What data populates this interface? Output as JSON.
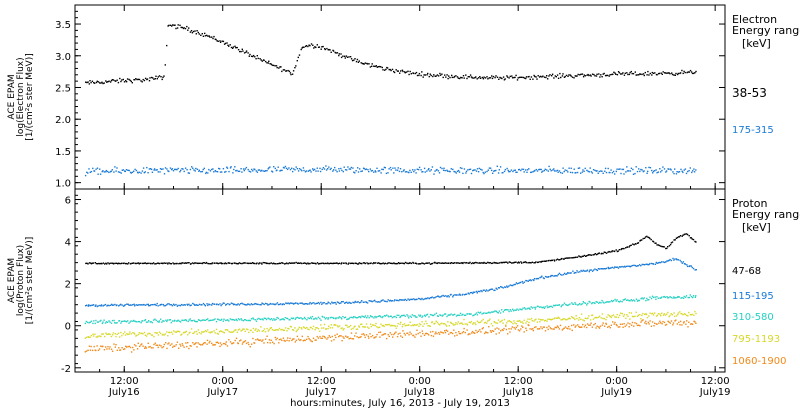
{
  "chart_data": [
    {
      "type": "scatter",
      "panel": "electron",
      "ylabel_lines": [
        "ACE EPAM",
        "log(Electron Flux)",
        "[1/(cm²s ster MeV)]"
      ],
      "ylim": [
        0.9,
        3.8
      ],
      "yticks": [
        1.0,
        1.5,
        2.0,
        2.5,
        3.0,
        3.5
      ],
      "ytick_labels": [
        "1.0",
        "1.5",
        "2.0",
        "2.5",
        "3.0",
        "3.5"
      ],
      "legend_title_lines": [
        "Electron",
        "Energy ranges",
        "[keV]"
      ],
      "series": [
        {
          "name": "38-53",
          "color": "#000000",
          "x": [
            16.3,
            16.5,
            16.6,
            16.65,
            16.7,
            16.72,
            16.8,
            16.9,
            17.0,
            17.1,
            17.2,
            17.3,
            17.35,
            17.4,
            17.45,
            17.5,
            17.6,
            17.7,
            17.8,
            17.9,
            18.0,
            18.2,
            18.4,
            18.6,
            18.8,
            19.0,
            19.2,
            19.3,
            19.4
          ],
          "y": [
            2.58,
            2.62,
            2.63,
            2.65,
            2.68,
            3.5,
            3.45,
            3.35,
            3.22,
            3.08,
            2.93,
            2.8,
            2.72,
            3.15,
            3.18,
            3.15,
            3.02,
            2.9,
            2.82,
            2.76,
            2.72,
            2.68,
            2.66,
            2.68,
            2.7,
            2.72,
            2.73,
            2.74,
            2.75
          ],
          "noise": 0.05
        },
        {
          "name": "175-315",
          "color": "#1a7ad6",
          "x": [
            16.3,
            16.6,
            17.0,
            17.5,
            18.0,
            18.5,
            19.0,
            19.4
          ],
          "y": [
            1.18,
            1.2,
            1.2,
            1.22,
            1.2,
            1.2,
            1.2,
            1.2
          ],
          "noise": 0.08
        }
      ]
    },
    {
      "type": "scatter",
      "panel": "proton",
      "ylabel_lines": [
        "ACE EPAM",
        "log(Proton Flux)",
        "[1/(cm²s ster MeV)]"
      ],
      "ylim": [
        -2.2,
        6.5
      ],
      "yticks": [
        -2,
        0,
        2,
        4,
        6
      ],
      "ytick_labels": [
        "-2",
        "0",
        "2",
        "4",
        "6"
      ],
      "legend_title_lines": [
        "Proton",
        "Energy ranges",
        "[keV]"
      ],
      "series": [
        {
          "name": "47-68",
          "color": "#000000",
          "x": [
            16.3,
            17.0,
            17.5,
            18.0,
            18.3,
            18.6,
            18.8,
            19.0,
            19.1,
            19.15,
            19.2,
            19.25,
            19.3,
            19.35,
            19.4
          ],
          "y": [
            3.0,
            3.0,
            3.0,
            3.0,
            3.02,
            3.05,
            3.3,
            3.6,
            3.95,
            4.3,
            3.9,
            3.7,
            4.2,
            4.4,
            4.0
          ],
          "noise": 0.05
        },
        {
          "name": "115-195",
          "color": "#1a7ad6",
          "x": [
            16.3,
            16.6,
            17.0,
            17.5,
            17.8,
            18.0,
            18.2,
            18.4,
            18.6,
            18.8,
            19.0,
            19.2,
            19.3,
            19.4
          ],
          "y": [
            1.0,
            1.02,
            1.05,
            1.1,
            1.2,
            1.3,
            1.5,
            1.8,
            2.3,
            2.6,
            2.8,
            3.0,
            3.2,
            2.7
          ],
          "noise": 0.08
        },
        {
          "name": "310-580",
          "color": "#26d0c2",
          "x": [
            16.3,
            16.6,
            17.0,
            17.5,
            18.0,
            18.3,
            18.6,
            18.8,
            19.0,
            19.2,
            19.4
          ],
          "y": [
            0.2,
            0.25,
            0.3,
            0.4,
            0.5,
            0.6,
            0.9,
            1.1,
            1.2,
            1.35,
            1.4
          ],
          "noise": 0.12
        },
        {
          "name": "795-1193",
          "color": "#d8d82a",
          "x": [
            16.3,
            16.6,
            17.0,
            17.5,
            18.0,
            18.4,
            18.8,
            19.0,
            19.2,
            19.4
          ],
          "y": [
            -0.45,
            -0.35,
            -0.25,
            -0.05,
            0.1,
            0.2,
            0.4,
            0.5,
            0.55,
            0.6
          ],
          "noise": 0.2
        },
        {
          "name": "1060-1900",
          "color": "#f08a1a",
          "x": [
            16.3,
            16.6,
            17.0,
            17.5,
            18.0,
            18.4,
            18.8,
            19.0,
            19.2,
            19.4
          ],
          "y": [
            -1.1,
            -0.95,
            -0.8,
            -0.55,
            -0.35,
            -0.2,
            0.0,
            0.1,
            0.15,
            0.2
          ],
          "noise": 0.25
        }
      ]
    }
  ],
  "time_axis": {
    "xlim": [
      16.25,
      19.55
    ],
    "ticks": [
      16.5,
      17.0,
      17.5,
      18.0,
      18.5,
      19.0,
      19.5
    ],
    "tick_time_labels": [
      "12:00",
      "0:00",
      "12:00",
      "0:00",
      "12:00",
      "0:00",
      "12:00"
    ],
    "tick_date_labels": [
      "July16",
      "July17",
      "July17",
      "July18",
      "July18",
      "July19",
      "July19"
    ],
    "xlabel": "hours:minutes, July 16, 2013 - July 19, 2013"
  }
}
